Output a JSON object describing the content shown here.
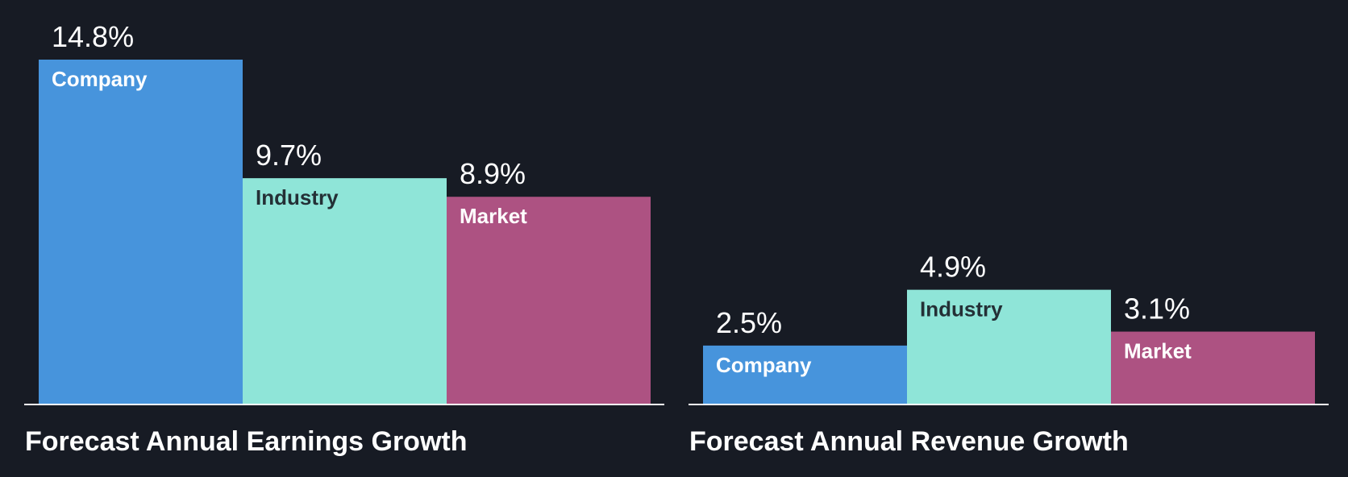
{
  "chart_data": [
    {
      "type": "bar",
      "title": "Forecast Annual Earnings Growth",
      "categories": [
        "Company",
        "Industry",
        "Market"
      ],
      "values": [
        14.8,
        9.7,
        8.9
      ],
      "value_labels": [
        "14.8%",
        "9.7%",
        "8.9%"
      ],
      "colors": [
        "#4794dc",
        "#8fe5d8",
        "#ad5282"
      ],
      "label_colors": [
        "#ffffff",
        "#243036",
        "#ffffff"
      ],
      "ylim": [
        0,
        14.8
      ],
      "grid": false,
      "legend": "none"
    },
    {
      "type": "bar",
      "title": "Forecast Annual Revenue Growth",
      "categories": [
        "Company",
        "Industry",
        "Market"
      ],
      "values": [
        2.5,
        4.9,
        3.1
      ],
      "value_labels": [
        "2.5%",
        "4.9%",
        "3.1%"
      ],
      "colors": [
        "#4794dc",
        "#8fe5d8",
        "#ad5282"
      ],
      "label_colors": [
        "#ffffff",
        "#243036",
        "#ffffff"
      ],
      "ylim": [
        0,
        14.8
      ],
      "grid": false,
      "legend": "none"
    }
  ],
  "colors": {
    "background": "#171b24",
    "baseline": "#ffffff",
    "text": "#ffffff"
  }
}
